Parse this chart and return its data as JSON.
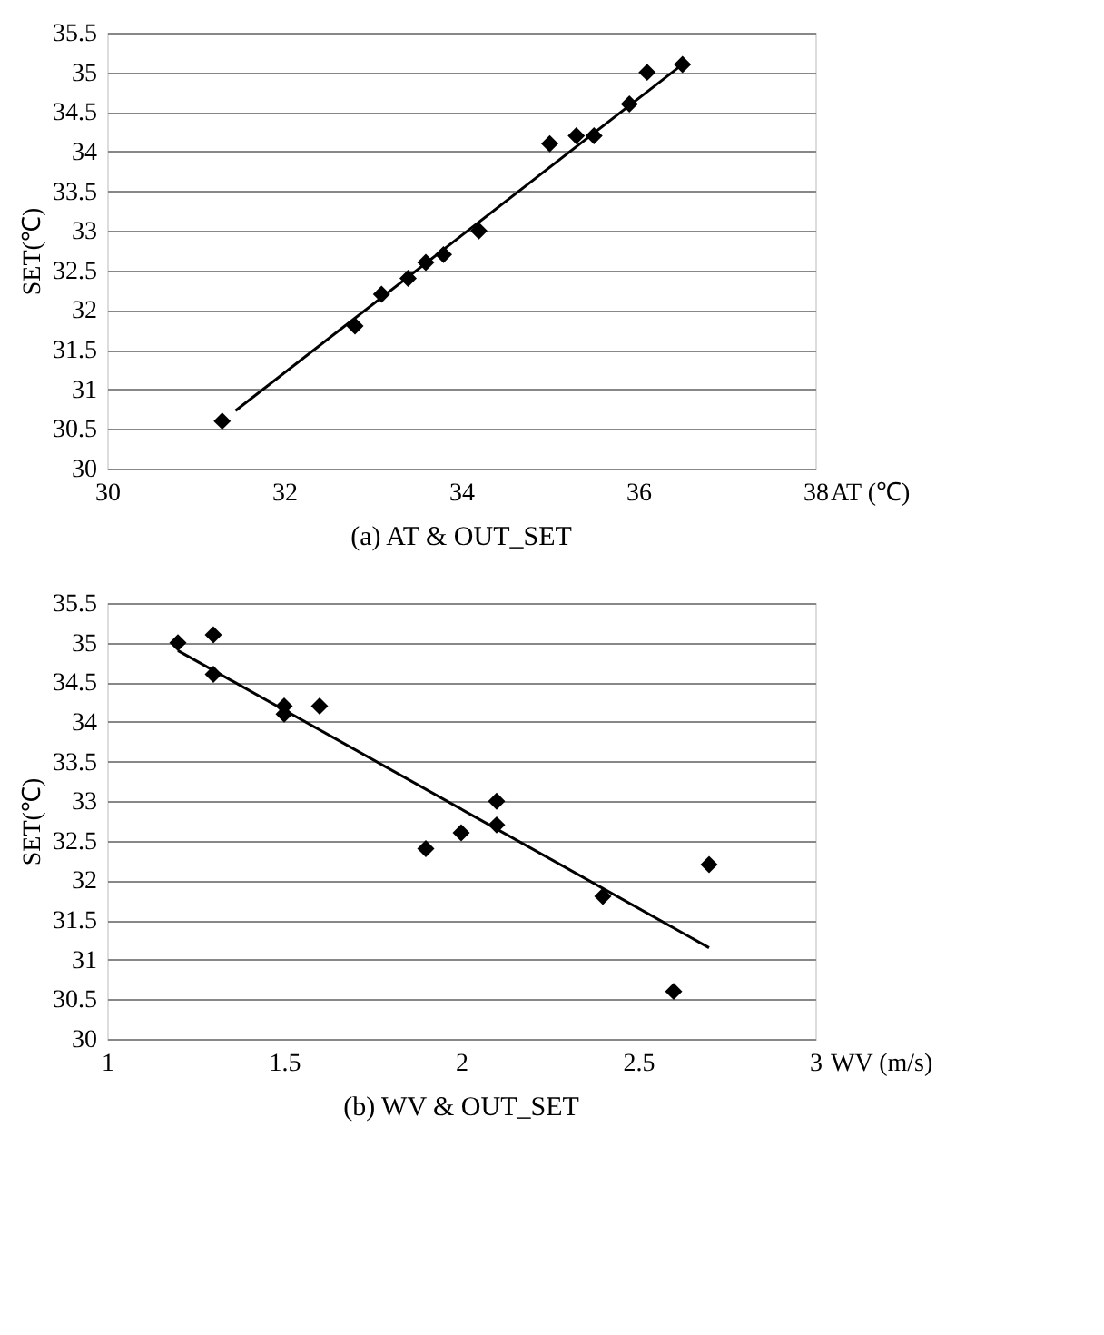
{
  "chart_data": [
    {
      "type": "scatter",
      "title": "(a) AT & OUT_SET",
      "xlabel": "AT (℃)",
      "ylabel": "SET(℃)",
      "xlim": [
        30,
        38
      ],
      "xticks": [
        30,
        32,
        34,
        36,
        38
      ],
      "ylim": [
        30,
        35.5
      ],
      "yticks": [
        30,
        30.5,
        31,
        31.5,
        32,
        32.5,
        33,
        33.5,
        34,
        34.5,
        35,
        35.5
      ],
      "grid": "y",
      "marker": "diamond",
      "series": [
        {
          "color": "#000000",
          "x": [
            31.3,
            32.8,
            33.1,
            33.4,
            33.6,
            33.8,
            34.2,
            35.0,
            35.3,
            35.5,
            35.9,
            36.1,
            36.5
          ],
          "values": [
            30.6,
            31.8,
            32.2,
            32.4,
            32.6,
            32.7,
            33.0,
            34.1,
            34.2,
            34.2,
            34.6,
            35.0,
            35.1
          ]
        },
        {
          "type": "line",
          "marker": "none",
          "color": "#000000",
          "x": [
            31.45,
            36.5
          ],
          "values": [
            30.73,
            35.1
          ]
        }
      ]
    },
    {
      "type": "scatter",
      "title": "(b) WV & OUT_SET",
      "xlabel": "WV (m/s)",
      "ylabel": "SET(℃)",
      "xlim": [
        1,
        3
      ],
      "xticks": [
        1,
        1.5,
        2,
        2.5,
        3
      ],
      "ylim": [
        30,
        35.5
      ],
      "yticks": [
        30,
        30.5,
        31,
        31.5,
        32,
        32.5,
        33,
        33.5,
        34,
        34.5,
        35,
        35.5
      ],
      "grid": "y",
      "marker": "diamond",
      "series": [
        {
          "color": "#000000",
          "x": [
            1.2,
            1.3,
            1.3,
            1.5,
            1.5,
            1.6,
            1.9,
            2.0,
            2.1,
            2.1,
            2.4,
            2.6,
            2.7
          ],
          "values": [
            35.0,
            35.1,
            34.6,
            34.2,
            34.1,
            34.2,
            32.4,
            32.6,
            33.0,
            32.7,
            31.8,
            30.6,
            32.2
          ]
        },
        {
          "type": "line",
          "marker": "none",
          "color": "#000000",
          "x": [
            1.2,
            2.7
          ],
          "values": [
            34.9,
            31.15
          ]
        }
      ]
    }
  ]
}
